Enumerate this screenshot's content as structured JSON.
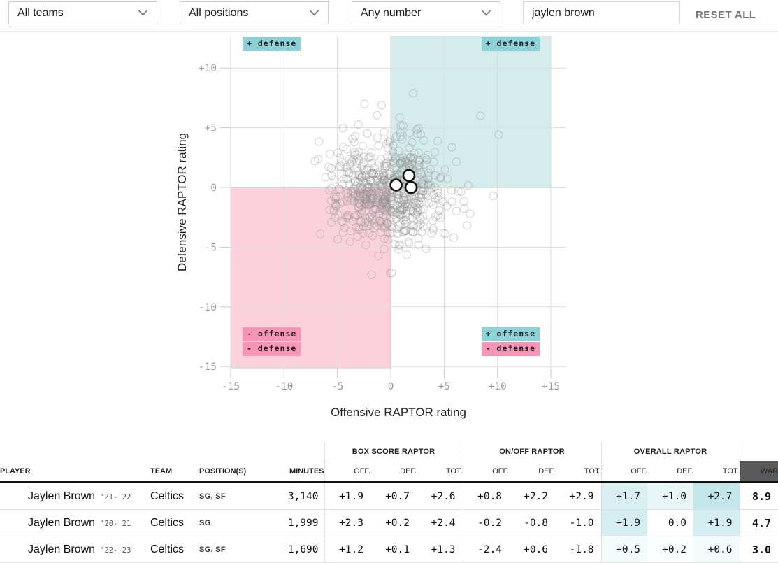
{
  "colors": {
    "teal_quadrant": "#d4ecec",
    "pink_quadrant": "#fbd2dc",
    "teal_label_bg": "#8ed2d9",
    "pink_label_bg": "#f795b7",
    "cell_teal_base": "#a5dbe1",
    "war_header_bg": "#58595b",
    "grid": "#dcdcdc",
    "grid_zero": "#c6c6c6",
    "tick": "#c9c9c9",
    "dot_stroke": "#8f8f8f",
    "highlight_stroke": "#111111"
  },
  "toolbar": {
    "team_filter": "All teams",
    "position_filter": "All positions",
    "number_filter": "Any number",
    "search_value": "jaylen brown",
    "reset_label": "RESET ALL"
  },
  "chart_data": {
    "type": "scatter",
    "xlabel": "Offensive RAPTOR rating",
    "ylabel": "Defensive RAPTOR rating",
    "xlim": [
      -15,
      16.5
    ],
    "ylim": [
      -15.2,
      12.7
    ],
    "xticks": [
      -15,
      -10,
      -5,
      0,
      5,
      10,
      15
    ],
    "yticks": [
      -15,
      -10,
      -5,
      0,
      5,
      10
    ],
    "grid": true,
    "quadrants": [
      {
        "corner": "top-right",
        "x": [
          0,
          15
        ],
        "y": [
          0,
          12.7
        ],
        "fill": "teal_quadrant"
      },
      {
        "corner": "bottom-left",
        "x": [
          -15,
          0
        ],
        "y": [
          -15.2,
          0
        ],
        "fill": "pink_quadrant"
      }
    ],
    "annotations": [
      {
        "text": "+ defense",
        "color": "teal",
        "slot": "top-left"
      },
      {
        "text": "+ defense",
        "color": "teal",
        "slot": "top-right"
      },
      {
        "text": "- offense",
        "color": "pink",
        "slot": "bottom-left-1"
      },
      {
        "text": "- defense",
        "color": "pink",
        "slot": "bottom-left-2"
      },
      {
        "text": "+ offense",
        "color": "teal",
        "slot": "bottom-right-1"
      },
      {
        "text": "- defense",
        "color": "pink",
        "slot": "bottom-right-2"
      }
    ],
    "highlighted_points": [
      {
        "label": "Jaylen Brown '21-'22",
        "x": 1.7,
        "y": 1.0
      },
      {
        "label": "Jaylen Brown '20-'21",
        "x": 1.9,
        "y": 0.0
      },
      {
        "label": "Jaylen Brown '22-'23",
        "x": 0.5,
        "y": 0.2
      }
    ],
    "background_cloud": {
      "note": "unlabeled league player-seasons cloud",
      "count": 640,
      "mean": [
        -0.3,
        -0.2
      ],
      "std": [
        2.5,
        2.2
      ],
      "seed": 7,
      "bounds": {
        "x": [
          -8.6,
          10.3
        ],
        "y": [
          -8.1,
          8.3
        ]
      },
      "extra_points": [
        [
          8.4,
          6.0
        ],
        [
          10.1,
          4.4
        ],
        [
          -7.1,
          2.2
        ],
        [
          -1.8,
          -7.3
        ],
        [
          5.9,
          -4.2
        ],
        [
          9.6,
          -0.7
        ],
        [
          -6.6,
          -3.9
        ],
        [
          2.1,
          7.9
        ]
      ]
    }
  },
  "table": {
    "groups": [
      "BOX SCORE RAPTOR",
      "ON/OFF RAPTOR",
      "OVERALL RAPTOR"
    ],
    "columns": {
      "player": "PLAYER",
      "team": "TEAM",
      "positions": "POSITION(S)",
      "minutes": "MINUTES",
      "stat": [
        "OFF.",
        "DEF.",
        "TOT."
      ],
      "war": "WAR"
    },
    "rows": [
      {
        "player": "Jaylen Brown",
        "seasons": "'21-'22",
        "team": "Celtics",
        "positions": "SG, SF",
        "minutes": "3,140",
        "box_score": [
          "+1.9",
          "+0.7",
          "+2.6"
        ],
        "on_off": [
          "+0.8",
          "+2.2",
          "+2.9"
        ],
        "overall": [
          "+1.7",
          "+1.0",
          "+2.7"
        ],
        "war": "8.9"
      },
      {
        "player": "Jaylen Brown",
        "seasons": "'20-'21",
        "team": "Celtics",
        "positions": "SG",
        "minutes": "1,999",
        "box_score": [
          "+2.3",
          "+0.2",
          "+2.4"
        ],
        "on_off": [
          "-0.2",
          "-0.8",
          "-1.0"
        ],
        "overall": [
          "+1.9",
          "0.0",
          "+1.9"
        ],
        "war": "4.7"
      },
      {
        "player": "Jaylen Brown",
        "seasons": "'22-'23",
        "team": "Celtics",
        "positions": "SG, SF",
        "minutes": "1,690",
        "box_score": [
          "+1.2",
          "+0.1",
          "+1.3"
        ],
        "on_off": [
          "-2.4",
          "+0.6",
          "-1.8"
        ],
        "overall": [
          "+0.5",
          "+0.2",
          "+0.6"
        ],
        "war": "3.0"
      }
    ]
  }
}
